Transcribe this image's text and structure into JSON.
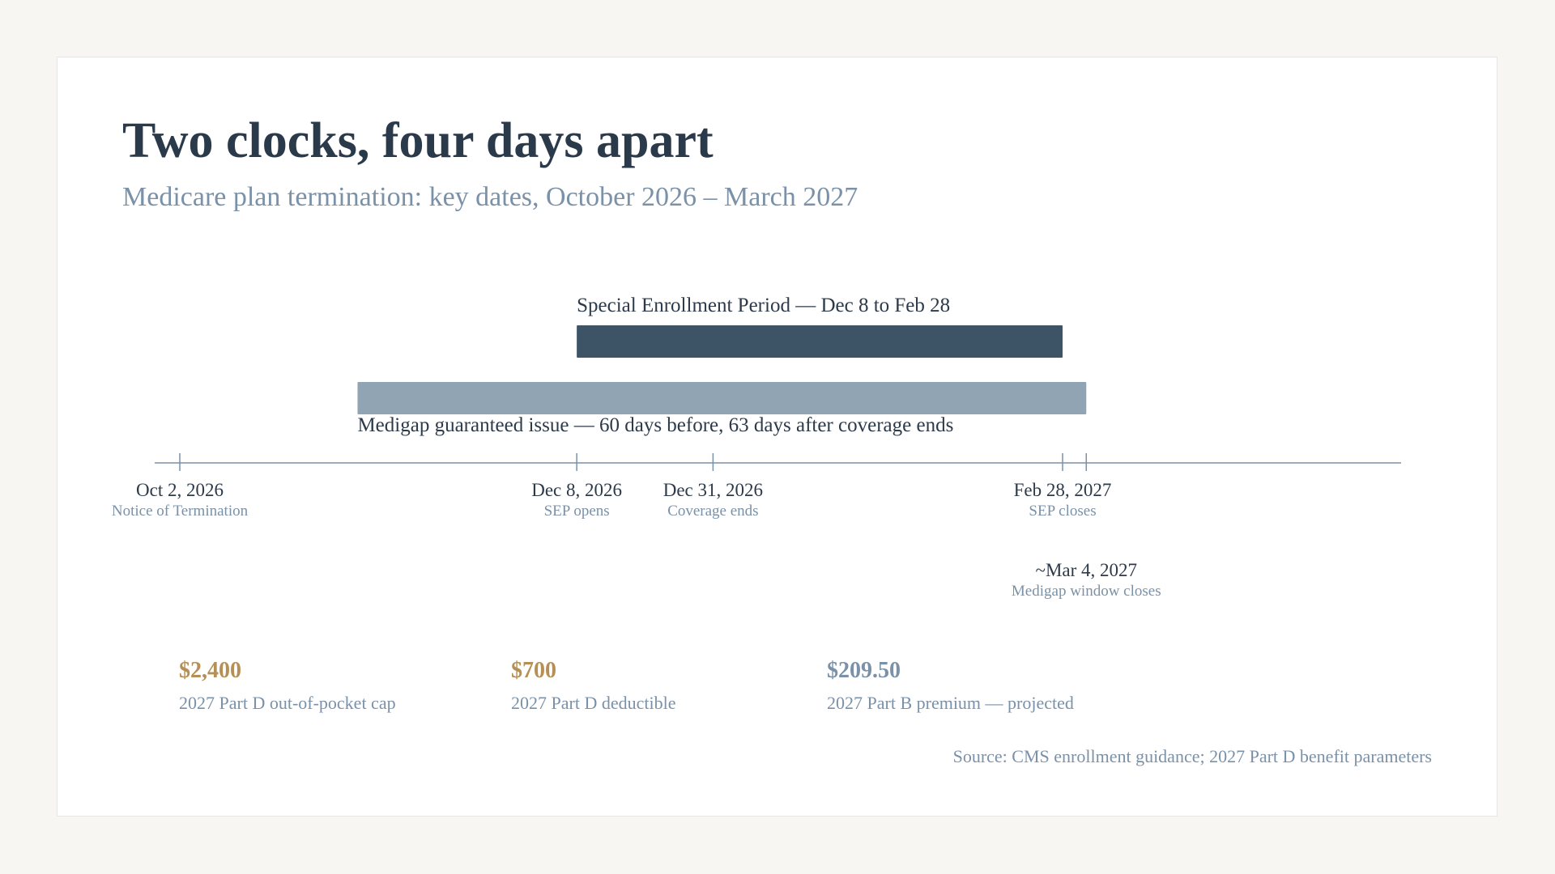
{
  "header": {
    "title": "Two clocks, four days apart",
    "subtitle": "Medicare plan termination: key dates, October 2026 – March 2027"
  },
  "colors": {
    "sep_bar": "#3d5366",
    "medigap_bar": "#91a4b4",
    "axis": "#7a91a8",
    "date_text": "#2c3a4a",
    "sub_text": "#7a91a8",
    "accent_gold": "#b58f55",
    "accent_blue": "#7a91a8"
  },
  "chart_data": {
    "type": "timeline",
    "x_axis": {
      "type": "date",
      "range": [
        "2026-09-28",
        "2027-04-10"
      ]
    },
    "periods": [
      {
        "label": "Special Enrollment Period — Dec 8 to Feb 28",
        "start": "2026-12-08",
        "end": "2027-02-28",
        "color": "#3d5366",
        "label_position": "above"
      },
      {
        "label": "Medigap guaranteed issue — 60 days before, 63 days after coverage ends",
        "start": "2026-11-01",
        "end": "2027-03-04",
        "color": "#91a4b4",
        "label_position": "below"
      }
    ],
    "milestones": [
      {
        "date": "2026-10-02",
        "label": "Oct 2, 2026",
        "sublabel": "Notice of Termination",
        "row": 1
      },
      {
        "date": "2026-12-08",
        "label": "Dec 8, 2026",
        "sublabel": "SEP opens",
        "row": 1
      },
      {
        "date": "2026-12-31",
        "label": "Dec 31, 2026",
        "sublabel": "Coverage ends",
        "row": 1
      },
      {
        "date": "2027-02-28",
        "label": "Feb 28, 2027",
        "sublabel": "SEP closes",
        "row": 1
      },
      {
        "date": "2027-03-04",
        "label": "~Mar 4, 2027",
        "sublabel": "Medigap window closes",
        "row": 2
      }
    ]
  },
  "stats": [
    {
      "value": "$2,400",
      "label": "2027 Part D out-of-pocket cap",
      "color": "#b58f55"
    },
    {
      "value": "$700",
      "label": "2027 Part D deductible",
      "color": "#b58f55"
    },
    {
      "value": "$209.50",
      "label": "2027 Part B premium — projected",
      "color": "#7a91a8"
    }
  ],
  "source": "Source: CMS enrollment guidance; 2027 Part D benefit parameters"
}
